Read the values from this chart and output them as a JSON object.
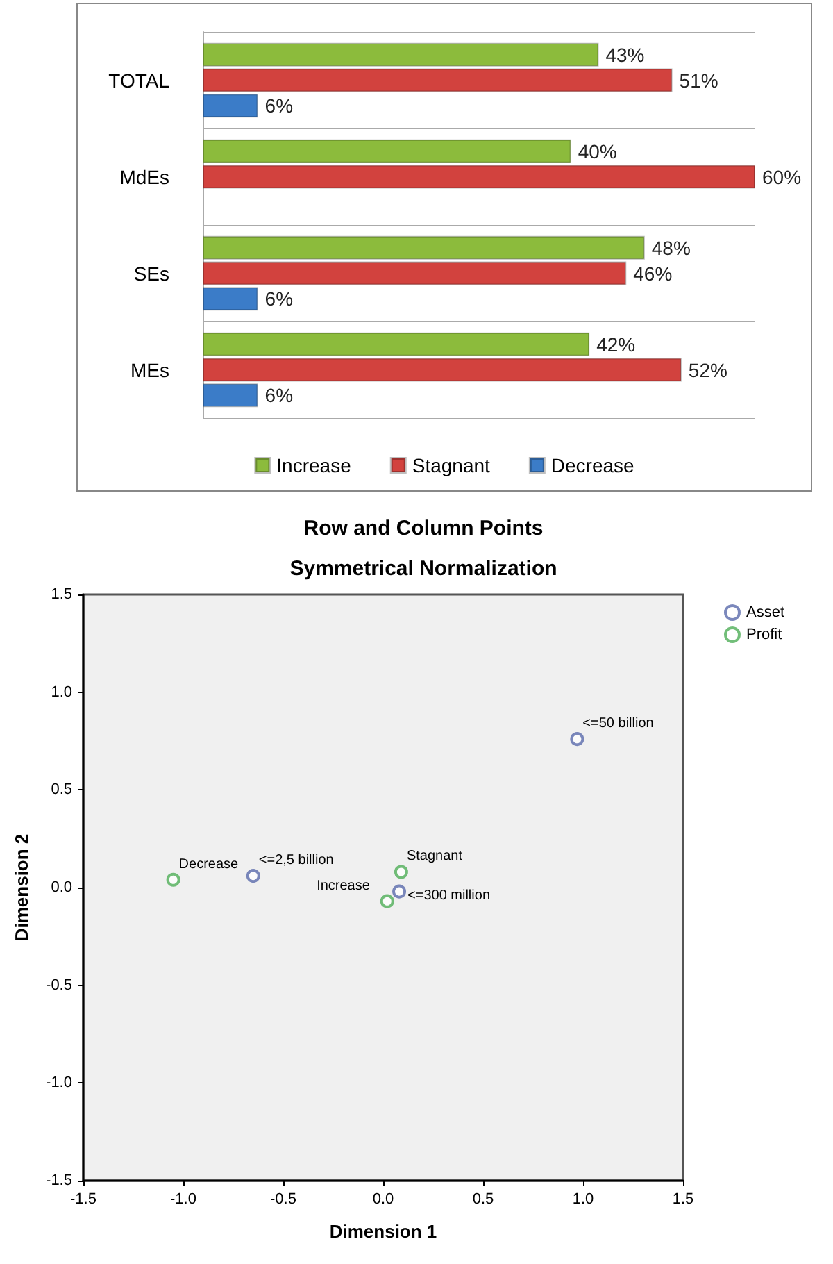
{
  "chart_data": [
    {
      "type": "bar",
      "orientation": "horizontal",
      "categories": [
        "TOTAL",
        "MdEs",
        "SEs",
        "MEs"
      ],
      "series": [
        {
          "name": "Increase",
          "color": "#8cbb3c",
          "values": [
            43,
            40,
            48,
            42
          ],
          "value_labels": [
            "43%",
            "40%",
            "48%",
            "42%"
          ]
        },
        {
          "name": "Stagnant",
          "color": "#d2423e",
          "values": [
            51,
            60,
            46,
            52
          ],
          "value_labels": [
            "51%",
            "60%",
            "46%",
            "52%"
          ]
        },
        {
          "name": "Decrease",
          "color": "#3b7cc8",
          "values": [
            6,
            null,
            6,
            6
          ],
          "value_labels": [
            "6%",
            null,
            "6%",
            "6%"
          ]
        }
      ],
      "grid": true,
      "legend": "bottom",
      "tick_labels": "y"
    },
    {
      "type": "scatter",
      "title": "Row and Column Points",
      "subtitle": "Symmetrical Normalization",
      "xlabel": "Dimension 1",
      "ylabel": "Dimension 2",
      "series": [
        {
          "name": "Asset",
          "color": "#5a6aab",
          "x": [
            0.97,
            -0.65,
            0.08
          ],
          "values": [
            0.76,
            0.06,
            -0.02
          ]
        },
        {
          "name": "Profit",
          "color": "#4fae57",
          "x": [
            -1.05,
            0.09,
            0.02
          ],
          "values": [
            0.04,
            0.08,
            -0.07
          ]
        }
      ],
      "annotations": [
        {
          "text": "<=50 billion",
          "x": 0.97,
          "y": 0.76
        },
        {
          "text": "<=2,5 billion",
          "x": -0.65,
          "y": 0.06
        },
        {
          "text": "<=300 million",
          "x": 0.08,
          "y": -0.02
        },
        {
          "text": "Decrease",
          "x": -1.05,
          "y": 0.04
        },
        {
          "text": "Stagnant",
          "x": 0.09,
          "y": 0.08
        },
        {
          "text": "Increase",
          "x": 0.02,
          "y": -0.07
        }
      ],
      "xlim": [
        -1.5,
        1.5
      ],
      "xticks": [
        -1.5,
        {
          "value": -1,
          "label": "-1.0"
        },
        -0.5,
        {
          "value": 0,
          "label": "0.0"
        },
        0.5,
        {
          "value": 1,
          "label": "1.0"
        },
        1.5
      ],
      "ylim": [
        -1.5,
        1.5
      ],
      "yticks": [
        -1.5,
        {
          "value": -1,
          "label": "-1.0"
        },
        -0.5,
        {
          "value": 0,
          "label": "0.0"
        },
        0.5,
        {
          "value": 1,
          "label": "1.0"
        },
        1.5
      ],
      "grid": false,
      "legend": "top right",
      "marker": "circle"
    }
  ]
}
